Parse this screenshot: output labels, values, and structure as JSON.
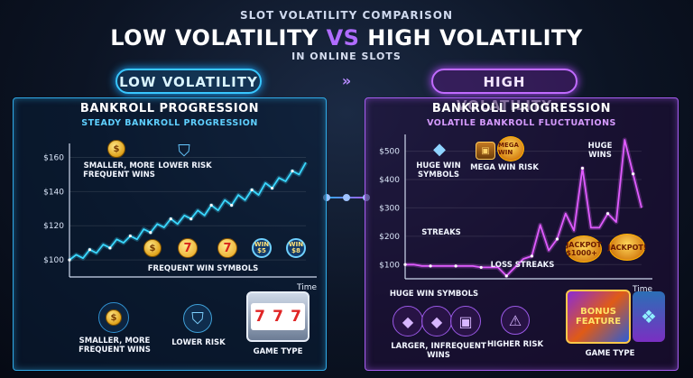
{
  "header": {
    "kicker": "SLOT VOLATILITY COMPARISON",
    "title_left": "LOW VOLATILITY ",
    "title_vs": "VS",
    "title_right": " HIGH VOLATILITY",
    "subtitle": "IN ONLINE SLOTS"
  },
  "labels": {
    "low": "LOW VOLATILITY",
    "high": "HIGH VOLATILITY",
    "arrows": "»"
  },
  "colors": {
    "low_accent": "#38c7ff",
    "high_accent": "#c16bff",
    "low_line": "#3ad8ff",
    "high_line": "#e05cff"
  },
  "low_panel": {
    "title": "BANKROLL PROGRESSION",
    "subtitle": "STEADY BANKROLL PROGRESSION",
    "anno_small_wins": "SMALLER, MORE FREQUENT WINS",
    "anno_lower_risk": "LOWER RISK",
    "anno_symbols": "FREQUENT WIN SYMBOLS",
    "chip1": "WIN $5",
    "chip2": "WIN $8",
    "seven": "7",
    "x_axis": "Time",
    "bottom_small_wins": "SMALLER, MORE FREQUENT WINS",
    "bottom_lower_risk": "LOWER RISK",
    "bottom_game_type": "GAME TYPE",
    "slot_symbols": [
      "7",
      "7",
      "7"
    ],
    "slot_wins": [
      "WIN",
      "WIN"
    ]
  },
  "high_panel": {
    "title": "BANKROLL PROGRESSION",
    "subtitle": "VOLATILE BANKROLL FLUCTUATIONS",
    "anno_huge_symbols": "HUGE WIN SYMBOLS",
    "anno_mega": "MEGA WIN RISK",
    "mega_badge": "MEGA WIN",
    "anno_huge_wins": "HUGE WINS",
    "anno_streaks": "STREAKS",
    "anno_loss_streaks": "LOSS STREAKS",
    "jackpot1": "JACKPOT $1000+",
    "jackpot2": "JACKPOT!",
    "x_axis": "Time",
    "bottom_huge_symbols": "HUGE WIN SYMBOLS",
    "bottom_larger_wins": "LARGER, INFREQUENT WINS",
    "bottom_higher_risk": "HIGHER RISK",
    "bottom_game_type": "GAME TYPE",
    "bonus_label": "BONUS FEATURE",
    "bonus_big": "BONUS FEATURE"
  },
  "chart_data": [
    {
      "type": "line",
      "title": "BANKROLL PROGRESSION",
      "subtitle": "STEADY BANKROLL PROGRESSION",
      "xlabel": "Time",
      "ylabel": "",
      "y_ticks": [
        "$160",
        "$140",
        "$120",
        "$100"
      ],
      "ylim": [
        90,
        165
      ],
      "grid": true,
      "x": [
        0,
        1,
        2,
        3,
        4,
        5,
        6,
        7,
        8,
        9,
        10,
        11,
        12,
        13,
        14,
        15,
        16,
        17,
        18,
        19,
        20,
        21,
        22,
        23,
        24,
        25,
        26,
        27,
        28,
        29,
        30,
        31,
        32,
        33,
        34,
        35
      ],
      "values": [
        100,
        103,
        101,
        106,
        104,
        109,
        107,
        112,
        110,
        114,
        112,
        118,
        116,
        121,
        119,
        124,
        121,
        126,
        124,
        129,
        126,
        132,
        129,
        135,
        132,
        138,
        135,
        141,
        138,
        145,
        142,
        148,
        146,
        152,
        150,
        157
      ]
    },
    {
      "type": "line",
      "title": "BANKROLL PROGRESSION",
      "subtitle": "VOLATILE BANKROLL FLUCTUATIONS",
      "xlabel": "Time",
      "ylabel": "",
      "y_ticks": [
        "$500",
        "$400",
        "$300",
        "$200",
        "$100"
      ],
      "ylim": [
        50,
        540
      ],
      "grid": true,
      "x": [
        0,
        1,
        2,
        3,
        4,
        5,
        6,
        7,
        8,
        9,
        10,
        11,
        12,
        13,
        14,
        15,
        16,
        17,
        18,
        19,
        20,
        21,
        22,
        23,
        24,
        25,
        26,
        27,
        28
      ],
      "values": [
        100,
        100,
        95,
        95,
        95,
        95,
        95,
        95,
        95,
        90,
        90,
        90,
        60,
        90,
        120,
        130,
        240,
        150,
        190,
        280,
        220,
        440,
        230,
        230,
        280,
        250,
        540,
        420,
        300
      ]
    }
  ]
}
